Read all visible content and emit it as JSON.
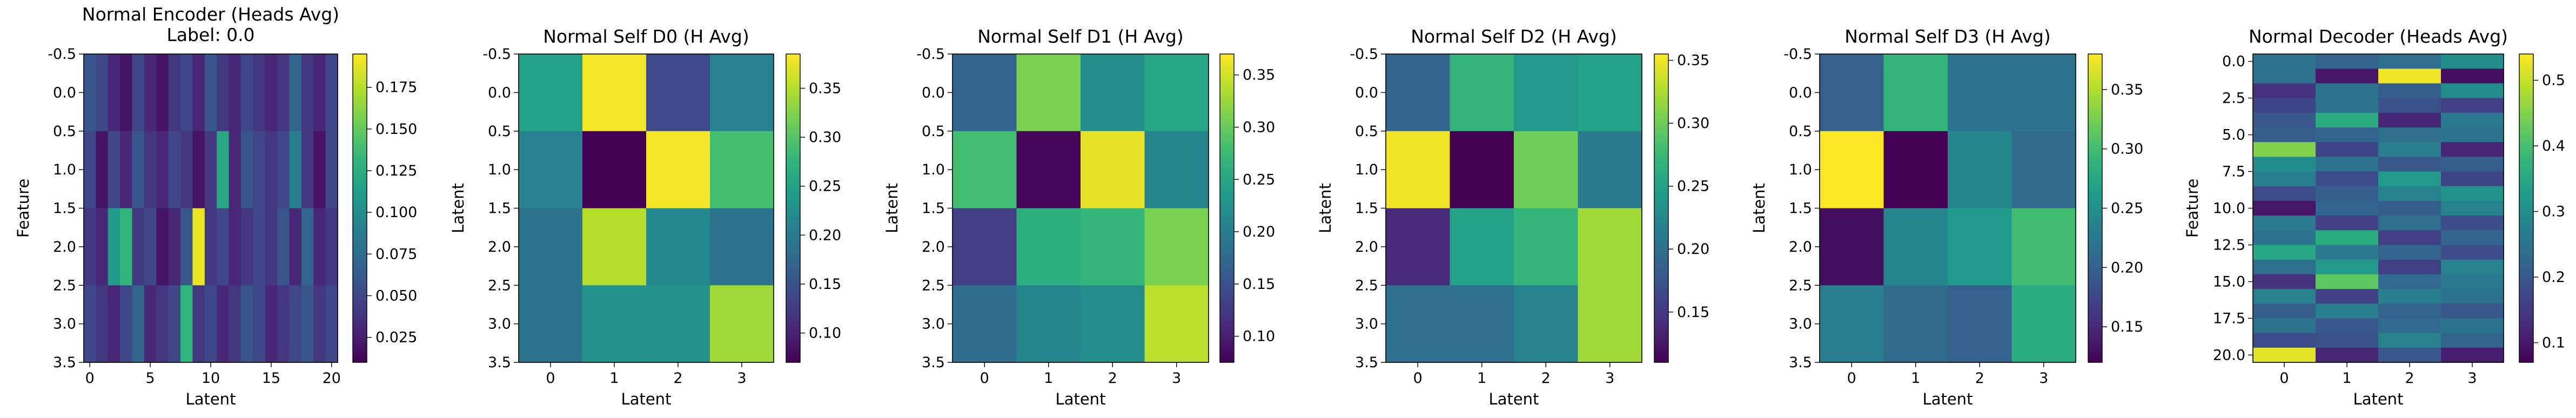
{
  "colormap": "viridis",
  "colormap_stops": [
    "#440154",
    "#482878",
    "#3e4989",
    "#31688e",
    "#26828e",
    "#1f9e89",
    "#35b779",
    "#6ece58",
    "#b5de2b",
    "#fde725"
  ],
  "chart_data": [
    {
      "type": "heatmap",
      "title": "Normal Encoder (Heads Avg)",
      "subtitle": "Label: 0.0",
      "xlabel": "Latent",
      "ylabel": "Feature",
      "xlim": [
        -0.5,
        20.5
      ],
      "ylim": [
        3.5,
        -0.5
      ],
      "xticks": [
        0,
        5,
        10,
        15,
        20
      ],
      "yticks": [
        -0.5,
        0.0,
        0.5,
        1.0,
        1.5,
        2.0,
        2.5,
        3.0,
        3.5
      ],
      "ytick_labels": [
        "-0.5",
        "0.0",
        "0.5",
        "1.0",
        "1.5",
        "2.0",
        "2.5",
        "3.0",
        "3.5"
      ],
      "vmin": 0.01,
      "vmax": 0.195,
      "colorbar_ticks": [
        0.025,
        0.05,
        0.075,
        0.1,
        0.125,
        0.15,
        0.175
      ],
      "colorbar_tick_labels": [
        "0.025",
        "0.050",
        "0.075",
        "0.100",
        "0.125",
        "0.150",
        "0.175"
      ],
      "values": [
        [
          0.06,
          0.05,
          0.03,
          0.02,
          0.05,
          0.03,
          0.02,
          0.04,
          0.05,
          0.03,
          0.06,
          0.04,
          0.03,
          0.05,
          0.04,
          0.03,
          0.04,
          0.07,
          0.04,
          0.03,
          0.05
        ],
        [
          0.05,
          0.02,
          0.05,
          0.03,
          0.06,
          0.04,
          0.03,
          0.05,
          0.04,
          0.02,
          0.04,
          0.12,
          0.03,
          0.06,
          0.05,
          0.04,
          0.05,
          0.09,
          0.04,
          0.02,
          0.05
        ],
        [
          0.04,
          0.03,
          0.11,
          0.13,
          0.04,
          0.05,
          0.02,
          0.03,
          0.06,
          0.19,
          0.04,
          0.05,
          0.03,
          0.04,
          0.05,
          0.04,
          0.06,
          0.03,
          0.07,
          0.03,
          0.04
        ],
        [
          0.05,
          0.04,
          0.03,
          0.05,
          0.07,
          0.03,
          0.04,
          0.05,
          0.13,
          0.04,
          0.05,
          0.03,
          0.04,
          0.06,
          0.05,
          0.03,
          0.04,
          0.05,
          0.06,
          0.04,
          0.05
        ]
      ]
    },
    {
      "type": "heatmap",
      "title": "Normal Self D0 (H Avg)",
      "xlabel": "Latent",
      "ylabel": "Latent",
      "xlim": [
        -0.5,
        3.5
      ],
      "ylim": [
        3.5,
        -0.5
      ],
      "xticks": [
        0,
        1,
        2,
        3
      ],
      "yticks": [
        -0.5,
        0.0,
        0.5,
        1.0,
        1.5,
        2.0,
        2.5,
        3.0,
        3.5
      ],
      "ytick_labels": [
        "-0.5",
        "0.0",
        "0.5",
        "1.0",
        "1.5",
        "2.0",
        "2.5",
        "3.0",
        "3.5"
      ],
      "vmin": 0.07,
      "vmax": 0.385,
      "colorbar_ticks": [
        0.1,
        0.15,
        0.2,
        0.25,
        0.3,
        0.35
      ],
      "colorbar_tick_labels": [
        "0.10",
        "0.15",
        "0.20",
        "0.25",
        "0.30",
        "0.35"
      ],
      "values": [
        [
          0.25,
          0.38,
          0.14,
          0.21
        ],
        [
          0.21,
          0.07,
          0.38,
          0.29
        ],
        [
          0.19,
          0.35,
          0.22,
          0.19
        ],
        [
          0.19,
          0.23,
          0.23,
          0.34
        ]
      ]
    },
    {
      "type": "heatmap",
      "title": "Normal Self D1 (H Avg)",
      "xlabel": "Latent",
      "ylabel": "Latent",
      "xlim": [
        -0.5,
        3.5
      ],
      "ylim": [
        3.5,
        -0.5
      ],
      "xticks": [
        0,
        1,
        2,
        3
      ],
      "yticks": [
        -0.5,
        0.0,
        0.5,
        1.0,
        1.5,
        2.0,
        2.5,
        3.0,
        3.5
      ],
      "ytick_labels": [
        "-0.5",
        "0.0",
        "0.5",
        "1.0",
        "1.5",
        "2.0",
        "2.5",
        "3.0",
        "3.5"
      ],
      "vmin": 0.075,
      "vmax": 0.37,
      "colorbar_ticks": [
        0.1,
        0.15,
        0.2,
        0.25,
        0.3,
        0.35
      ],
      "colorbar_tick_labels": [
        "0.10",
        "0.15",
        "0.20",
        "0.25",
        "0.30",
        "0.35"
      ],
      "values": [
        [
          0.17,
          0.31,
          0.22,
          0.25
        ],
        [
          0.28,
          0.08,
          0.36,
          0.21
        ],
        [
          0.13,
          0.26,
          0.27,
          0.31
        ],
        [
          0.18,
          0.21,
          0.22,
          0.34
        ]
      ]
    },
    {
      "type": "heatmap",
      "title": "Normal Self D2 (H Avg)",
      "xlabel": "Latent",
      "ylabel": "Latent",
      "xlim": [
        -0.5,
        3.5
      ],
      "ylim": [
        3.5,
        -0.5
      ],
      "xticks": [
        0,
        1,
        2,
        3
      ],
      "yticks": [
        -0.5,
        0.0,
        0.5,
        1.0,
        1.5,
        2.0,
        2.5,
        3.0,
        3.5
      ],
      "ytick_labels": [
        "-0.5",
        "0.0",
        "0.5",
        "1.0",
        "1.5",
        "2.0",
        "2.5",
        "3.0",
        "3.5"
      ],
      "vmin": 0.11,
      "vmax": 0.355,
      "colorbar_ticks": [
        0.15,
        0.2,
        0.25,
        0.3,
        0.35
      ],
      "colorbar_tick_labels": [
        "0.15",
        "0.20",
        "0.25",
        "0.30",
        "0.35"
      ],
      "values": [
        [
          0.19,
          0.27,
          0.24,
          0.25
        ],
        [
          0.35,
          0.11,
          0.3,
          0.21
        ],
        [
          0.14,
          0.25,
          0.27,
          0.32
        ],
        [
          0.2,
          0.2,
          0.22,
          0.32
        ]
      ]
    },
    {
      "type": "heatmap",
      "title": "Normal Self D3 (H Avg)",
      "xlabel": "Latent",
      "ylabel": "Latent",
      "xlim": [
        -0.5,
        3.5
      ],
      "ylim": [
        3.5,
        -0.5
      ],
      "xticks": [
        0,
        1,
        2,
        3
      ],
      "yticks": [
        -0.5,
        0.0,
        0.5,
        1.0,
        1.5,
        2.0,
        2.5,
        3.0,
        3.5
      ],
      "ytick_labels": [
        "-0.5",
        "0.0",
        "0.5",
        "1.0",
        "1.5",
        "2.0",
        "2.5",
        "3.0",
        "3.5"
      ],
      "vmin": 0.12,
      "vmax": 0.38,
      "colorbar_ticks": [
        0.15,
        0.2,
        0.25,
        0.3,
        0.35
      ],
      "colorbar_tick_labels": [
        "0.15",
        "0.20",
        "0.25",
        "0.30",
        "0.35"
      ],
      "values": [
        [
          0.2,
          0.29,
          0.22,
          0.22
        ],
        [
          0.38,
          0.12,
          0.24,
          0.21
        ],
        [
          0.13,
          0.24,
          0.26,
          0.3
        ],
        [
          0.23,
          0.21,
          0.2,
          0.28
        ]
      ]
    },
    {
      "type": "heatmap",
      "title": "Normal Decoder (Heads Avg)",
      "xlabel": "Latent",
      "ylabel": "Feature",
      "xlim": [
        -0.5,
        3.5
      ],
      "ylim": [
        20.5,
        -0.5
      ],
      "xticks": [
        0,
        1,
        2,
        3
      ],
      "yticks": [
        0,
        2.5,
        5,
        7.5,
        10,
        12.5,
        15,
        17.5,
        20
      ],
      "ytick_labels": [
        "0.0",
        "2.5",
        "5.0",
        "7.5",
        "10.0",
        "12.5",
        "15.0",
        "17.5",
        "20.0"
      ],
      "vmin": 0.07,
      "vmax": 0.54,
      "colorbar_ticks": [
        0.1,
        0.2,
        0.3,
        0.4,
        0.5
      ],
      "colorbar_tick_labels": [
        "0.1",
        "0.2",
        "0.3",
        "0.4",
        "0.5"
      ],
      "values": [
        [
          0.25,
          0.22,
          0.24,
          0.3
        ],
        [
          0.25,
          0.1,
          0.53,
          0.09
        ],
        [
          0.14,
          0.25,
          0.21,
          0.3
        ],
        [
          0.17,
          0.25,
          0.19,
          0.16
        ],
        [
          0.2,
          0.36,
          0.12,
          0.26
        ],
        [
          0.21,
          0.22,
          0.24,
          0.25
        ],
        [
          0.45,
          0.17,
          0.27,
          0.12
        ],
        [
          0.3,
          0.25,
          0.2,
          0.21
        ],
        [
          0.27,
          0.18,
          0.32,
          0.17
        ],
        [
          0.18,
          0.21,
          0.28,
          0.31
        ],
        [
          0.1,
          0.22,
          0.21,
          0.28
        ],
        [
          0.26,
          0.16,
          0.24,
          0.18
        ],
        [
          0.25,
          0.36,
          0.16,
          0.22
        ],
        [
          0.35,
          0.26,
          0.22,
          0.18
        ],
        [
          0.24,
          0.32,
          0.16,
          0.28
        ],
        [
          0.14,
          0.42,
          0.23,
          0.26
        ],
        [
          0.28,
          0.16,
          0.27,
          0.25
        ],
        [
          0.21,
          0.27,
          0.22,
          0.2
        ],
        [
          0.25,
          0.2,
          0.23,
          0.25
        ],
        [
          0.18,
          0.19,
          0.28,
          0.22
        ],
        [
          0.52,
          0.12,
          0.2,
          0.11
        ]
      ]
    }
  ]
}
